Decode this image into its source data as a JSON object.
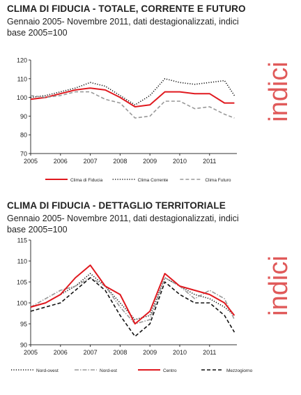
{
  "colors": {
    "red": "#e0191f",
    "black": "#111111",
    "grey": "#999999",
    "watermark": "#e05a5a"
  },
  "panels": [
    {
      "title": "CLIMA DI FIDUCIA - TOTALE, CORRENTE E FUTURO",
      "subtitle": "Gennaio 2005- Novembre 2011, dati destagionalizzati, indici base 2005=100",
      "watermark": "indici"
    },
    {
      "title": "CLIMA DI FIDUCIA - DETTAGLIO TERRITORIALE",
      "subtitle": "Gennaio 2005- Novembre 2011, dati destagionalizzati, indici base 2005=100",
      "watermark": "indici"
    }
  ],
  "chart_data": [
    {
      "type": "line",
      "x_range": [
        "2005-01",
        "2011-11"
      ],
      "x_ticks": [
        "2005",
        "2006",
        "2007",
        "2008",
        "2009",
        "2010",
        "2011"
      ],
      "ylim": [
        70,
        120
      ],
      "y_ticks": [
        "70",
        "80",
        "90",
        "100",
        "110",
        "120"
      ],
      "grid": false,
      "legend_position": "bottom",
      "series": [
        {
          "name": "Clima di Fiducia",
          "style": "solid",
          "color": "#e0191f",
          "points": [
            [
              "2005-01",
              99
            ],
            [
              "2005-07",
              100
            ],
            [
              "2006-01",
              102
            ],
            [
              "2006-07",
              104
            ],
            [
              "2007-01",
              105
            ],
            [
              "2007-07",
              104
            ],
            [
              "2008-01",
              100
            ],
            [
              "2008-07",
              95
            ],
            [
              "2009-01",
              96
            ],
            [
              "2009-07",
              103
            ],
            [
              "2010-01",
              103
            ],
            [
              "2010-07",
              102
            ],
            [
              "2011-01",
              102
            ],
            [
              "2011-07",
              97
            ],
            [
              "2011-11",
              97
            ]
          ]
        },
        {
          "name": "Clima Corrente",
          "style": "dotted",
          "color": "#111111",
          "points": [
            [
              "2005-01",
              100
            ],
            [
              "2005-07",
              101
            ],
            [
              "2006-01",
              103
            ],
            [
              "2006-07",
              105
            ],
            [
              "2007-01",
              108
            ],
            [
              "2007-07",
              106
            ],
            [
              "2008-01",
              101
            ],
            [
              "2008-07",
              96
            ],
            [
              "2009-01",
              101
            ],
            [
              "2009-07",
              110
            ],
            [
              "2010-01",
              108
            ],
            [
              "2010-07",
              107
            ],
            [
              "2011-01",
              108
            ],
            [
              "2011-07",
              109
            ],
            [
              "2011-11",
              101
            ]
          ]
        },
        {
          "name": "Clima Futuro",
          "style": "dashed",
          "color": "#999999",
          "points": [
            [
              "2005-01",
              101
            ],
            [
              "2005-07",
              100
            ],
            [
              "2006-01",
              101
            ],
            [
              "2006-07",
              103
            ],
            [
              "2007-01",
              103
            ],
            [
              "2007-07",
              99
            ],
            [
              "2008-01",
              97
            ],
            [
              "2008-07",
              89
            ],
            [
              "2009-01",
              90
            ],
            [
              "2009-07",
              98
            ],
            [
              "2010-01",
              98
            ],
            [
              "2010-07",
              94
            ],
            [
              "2011-01",
              95
            ],
            [
              "2011-07",
              91
            ],
            [
              "2011-11",
              89
            ]
          ]
        }
      ]
    },
    {
      "type": "line",
      "x_range": [
        "2005-01",
        "2011-11"
      ],
      "x_ticks": [
        "2005",
        "2006",
        "2007",
        "2008",
        "2009",
        "2010",
        "2011"
      ],
      "ylim": [
        90,
        115
      ],
      "y_ticks": [
        "90",
        "95",
        "100",
        "105",
        "110",
        "115"
      ],
      "grid": false,
      "legend_position": "bottom",
      "series": [
        {
          "name": "Nord-ovest",
          "style": "dotted",
          "color": "#111111",
          "points": [
            [
              "2005-01",
              99
            ],
            [
              "2005-07",
              100
            ],
            [
              "2006-01",
              102
            ],
            [
              "2006-07",
              104
            ],
            [
              "2007-01",
              107
            ],
            [
              "2007-07",
              104
            ],
            [
              "2008-01",
              100
            ],
            [
              "2008-07",
              96
            ],
            [
              "2009-01",
              97
            ],
            [
              "2009-07",
              106
            ],
            [
              "2010-01",
              104
            ],
            [
              "2010-07",
              102
            ],
            [
              "2011-01",
              101
            ],
            [
              "2011-07",
              99
            ],
            [
              "2011-11",
              97
            ]
          ]
        },
        {
          "name": "Nord-est",
          "style": "dashdot",
          "color": "#999999",
          "points": [
            [
              "2005-01",
              99
            ],
            [
              "2005-07",
              101
            ],
            [
              "2006-01",
              103
            ],
            [
              "2006-07",
              104
            ],
            [
              "2007-01",
              106
            ],
            [
              "2007-07",
              104
            ],
            [
              "2008-01",
              99
            ],
            [
              "2008-07",
              95
            ],
            [
              "2009-01",
              96
            ],
            [
              "2009-07",
              106
            ],
            [
              "2010-01",
              104
            ],
            [
              "2010-07",
              101
            ],
            [
              "2011-01",
              103
            ],
            [
              "2011-07",
              101
            ],
            [
              "2011-11",
              96
            ]
          ]
        },
        {
          "name": "Centro",
          "style": "solid",
          "color": "#e0191f",
          "points": [
            [
              "2005-01",
              99
            ],
            [
              "2005-07",
              100
            ],
            [
              "2006-01",
              102
            ],
            [
              "2006-07",
              106
            ],
            [
              "2007-01",
              109
            ],
            [
              "2007-07",
              104
            ],
            [
              "2008-01",
              102
            ],
            [
              "2008-07",
              95
            ],
            [
              "2009-01",
              98
            ],
            [
              "2009-07",
              107
            ],
            [
              "2010-01",
              104
            ],
            [
              "2010-07",
              103
            ],
            [
              "2011-01",
              102
            ],
            [
              "2011-07",
              100
            ],
            [
              "2011-11",
              97
            ]
          ]
        },
        {
          "name": "Mezzogiorno",
          "style": "dashed",
          "color": "#111111",
          "points": [
            [
              "2005-01",
              98
            ],
            [
              "2005-07",
              99
            ],
            [
              "2006-01",
              100
            ],
            [
              "2006-07",
              103
            ],
            [
              "2007-01",
              106
            ],
            [
              "2007-07",
              103
            ],
            [
              "2008-01",
              97
            ],
            [
              "2008-07",
              92
            ],
            [
              "2009-01",
              95
            ],
            [
              "2009-07",
              105
            ],
            [
              "2010-01",
              102
            ],
            [
              "2010-07",
              100
            ],
            [
              "2011-01",
              100
            ],
            [
              "2011-07",
              97
            ],
            [
              "2011-11",
              93
            ]
          ]
        }
      ]
    }
  ]
}
